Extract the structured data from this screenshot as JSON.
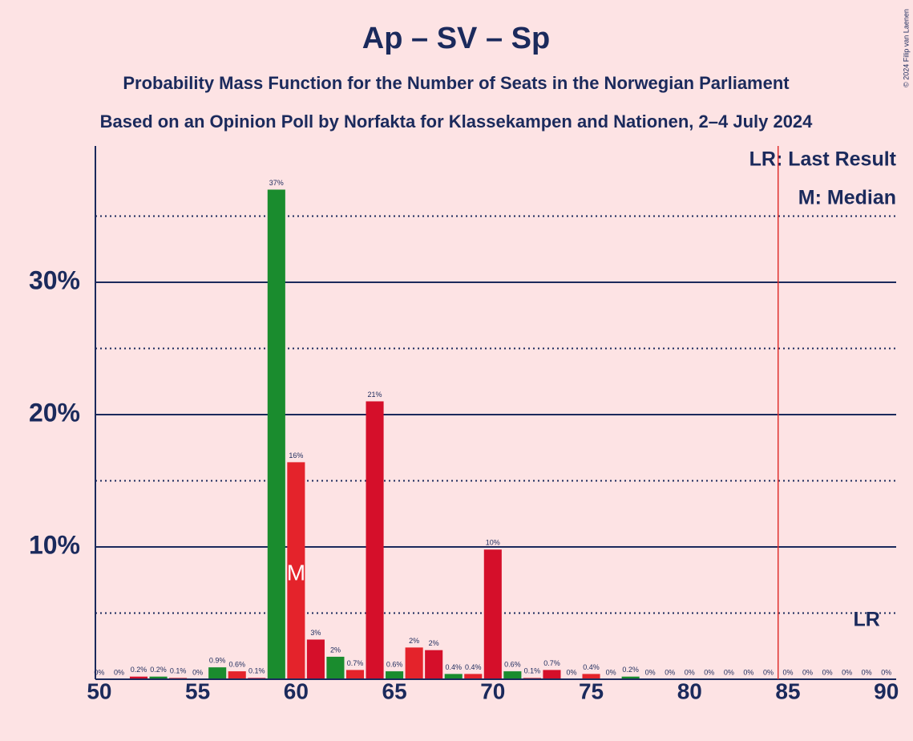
{
  "chart_data": {
    "type": "bar",
    "title": "Ap – SV – Sp",
    "subtitle": "Probability Mass Function for the Number of Seats in the Norwegian Parliament",
    "subtitle2": "Based on an Opinion Poll by Norfakta for Klassekampen and Nationen, 2–4 July 2024",
    "copyright": "© 2024 Filip van Laenen",
    "x": [
      50,
      51,
      52,
      53,
      54,
      55,
      56,
      57,
      58,
      59,
      60,
      61,
      62,
      63,
      64,
      65,
      66,
      67,
      68,
      69,
      70,
      71,
      72,
      73,
      74,
      75,
      76,
      77,
      78,
      79,
      80,
      81,
      82,
      83,
      84,
      85,
      86,
      87,
      88,
      89,
      90
    ],
    "values": [
      0,
      0,
      0.2,
      0.2,
      0.1,
      0,
      0.9,
      0.6,
      0.1,
      37,
      16.4,
      3,
      1.7,
      0.7,
      21,
      0.6,
      2.4,
      2.2,
      0.4,
      0.4,
      9.8,
      0.6,
      0.1,
      0.7,
      0,
      0.4,
      0,
      0.2,
      0,
      0,
      0,
      0,
      0,
      0,
      0,
      0,
      0,
      0,
      0,
      0,
      0
    ],
    "value_labels": [
      "0%",
      "0%",
      "0.2%",
      "0.2%",
      "0.1%",
      "0%",
      "0.9%",
      "0.6%",
      "0.1%",
      "37%",
      "16%",
      "3%",
      "2%",
      "0.7%",
      "21%",
      "0.6%",
      "2%",
      "2%",
      "0.4%",
      "0.4%",
      "10%",
      "0.6%",
      "0.1%",
      "0.7%",
      "0%",
      "0.4%",
      "0%",
      "0.2%",
      "0%",
      "0%",
      "0%",
      "0%",
      "0%",
      "0%",
      "0%",
      "0%",
      "0%",
      "0%",
      "0%",
      "0%",
      "0%"
    ],
    "colors": [
      "#1a8c2e",
      "#e4232b",
      "#d50f2a",
      "#1a8c2e",
      "#e4232b",
      "#d50f2a",
      "#1a8c2e",
      "#e4232b",
      "#d50f2a",
      "#1a8c2e",
      "#e4232b",
      "#d50f2a",
      "#1a8c2e",
      "#e4232b",
      "#d50f2a",
      "#1a8c2e",
      "#e4232b",
      "#d50f2a",
      "#1a8c2e",
      "#e4232b",
      "#d50f2a",
      "#1a8c2e",
      "#e4232b",
      "#d50f2a",
      "#1a8c2e",
      "#e4232b",
      "#d50f2a",
      "#1a8c2e",
      "#e4232b",
      "#d50f2a",
      "#1a8c2e",
      "#e4232b",
      "#d50f2a",
      "#1a8c2e",
      "#e4232b",
      "#d50f2a",
      "#1a8c2e",
      "#e4232b",
      "#d50f2a",
      "#1a8c2e",
      "#e4232b"
    ],
    "xlim": [
      49.8,
      90.5
    ],
    "xticks": [
      50,
      55,
      60,
      65,
      70,
      75,
      80,
      85,
      90
    ],
    "ylim": [
      0,
      40.3
    ],
    "yticks": [
      {
        "value": 10,
        "label": "10%"
      },
      {
        "value": 20,
        "label": "20%"
      },
      {
        "value": 30,
        "label": "30%"
      }
    ],
    "minor_yticks": [
      5,
      15,
      25,
      35
    ],
    "grid": true,
    "median": {
      "x": 60,
      "label": "M"
    },
    "last_result": {
      "x": 84.5,
      "label": "LR",
      "label_x": 89
    },
    "legend": [
      "LR: Last Result",
      "M: Median"
    ]
  }
}
